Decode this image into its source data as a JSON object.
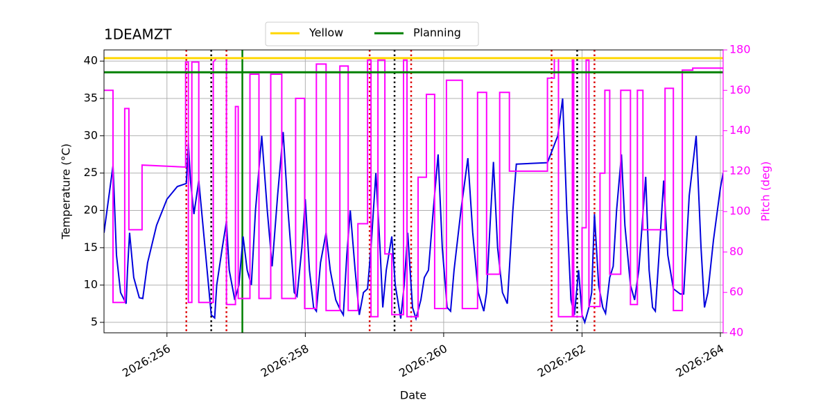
{
  "chart_data": {
    "type": "line",
    "title": "1DEAMZT",
    "xlabel": "Date",
    "ylabel": "Temperature (°C)",
    "y2label": "Pitch (deg)",
    "y2color": "#ff00ff",
    "xlim": [
      255.09,
      264.04
    ],
    "xticks": [
      {
        "value": 256,
        "label": "2026:256"
      },
      {
        "value": 258,
        "label": "2026:258"
      },
      {
        "value": 260,
        "label": "2026:260"
      },
      {
        "value": 262,
        "label": "2026:262"
      },
      {
        "value": 264,
        "label": "2026:264"
      }
    ],
    "ylim": [
      3.6,
      41.5
    ],
    "yticks": [
      5,
      10,
      15,
      20,
      25,
      30,
      35,
      40
    ],
    "y2lim": [
      40,
      180
    ],
    "y2ticks": [
      40,
      60,
      80,
      100,
      120,
      140,
      160,
      180
    ],
    "grid": true,
    "legend": "upper center",
    "hlines": [
      {
        "name": "Yellow",
        "color": "#ffd700",
        "value": 40.4
      },
      {
        "name": "Planning",
        "color": "#008000",
        "value": 38.5
      }
    ],
    "vlines": [
      {
        "color": "#dd0000",
        "style": "dotted",
        "x": [
          256.28,
          256.86,
          258.93,
          259.53,
          261.56,
          262.18
        ]
      },
      {
        "color": "#000000",
        "style": "dotted",
        "x": [
          256.64,
          259.29,
          261.93
        ]
      },
      {
        "color": "#008000",
        "style": "solid",
        "x": [
          257.09
        ]
      }
    ],
    "series": [
      {
        "color": "#0000dd",
        "x": [
          255.09,
          255.22,
          255.27,
          255.33,
          255.41,
          255.43,
          255.46,
          255.52,
          255.6,
          255.65,
          255.72,
          255.85,
          256.0,
          256.15,
          256.28,
          256.31,
          256.34,
          256.39,
          256.46,
          256.6,
          256.64,
          256.69,
          256.72,
          256.8,
          256.86,
          256.9,
          256.98,
          257.04,
          257.1,
          257.16,
          257.22,
          257.28,
          257.37,
          257.45,
          257.52,
          257.6,
          257.68,
          257.75,
          257.84,
          257.88,
          257.95,
          258.0,
          258.06,
          258.12,
          258.16,
          258.22,
          258.3,
          258.36,
          258.44,
          258.5,
          258.55,
          258.6,
          258.65,
          258.72,
          258.78,
          258.84,
          258.9,
          258.95,
          259.02,
          259.08,
          259.12,
          259.17,
          259.25,
          259.3,
          259.38,
          259.43,
          259.48,
          259.55,
          259.6,
          259.67,
          259.72,
          259.78,
          259.85,
          259.92,
          259.98,
          260.05,
          260.1,
          260.15,
          260.25,
          260.35,
          260.42,
          260.5,
          260.58,
          260.62,
          260.67,
          260.72,
          260.78,
          260.85,
          260.92,
          261.0,
          261.05,
          261.5,
          261.65,
          261.72,
          261.78,
          261.84,
          261.89,
          261.95,
          262.0,
          262.04,
          262.1,
          262.14,
          262.18,
          262.24,
          262.3,
          262.34,
          262.4,
          262.45,
          262.5,
          262.57,
          262.62,
          262.7,
          262.76,
          262.82,
          262.92,
          262.97,
          263.02,
          263.06,
          263.12,
          263.18,
          263.24,
          263.32,
          263.42,
          263.47,
          263.55,
          263.65,
          263.72,
          263.77,
          263.82,
          263.9,
          264.0,
          264.04
        ],
        "values": [
          17,
          26,
          14,
          9,
          7.5,
          12,
          17,
          11,
          8.3,
          8.2,
          13,
          18,
          21.5,
          23.2,
          23.6,
          29,
          24,
          19.5,
          24,
          10,
          6,
          5.6,
          10,
          15,
          18.5,
          12,
          8,
          10,
          16.5,
          12,
          10,
          20,
          30,
          20,
          12.5,
          22,
          30.5,
          20,
          9,
          8.5,
          15,
          21.5,
          12,
          7,
          6.5,
          13,
          17,
          12,
          8,
          6.8,
          6,
          14,
          20,
          12,
          6,
          9,
          9.5,
          15,
          25,
          15,
          7,
          12,
          16.5,
          10,
          5.5,
          10,
          17,
          7,
          5.5,
          8,
          11,
          12,
          20,
          27.5,
          15,
          7,
          6.5,
          12,
          20,
          27,
          17,
          9,
          6.5,
          9,
          18,
          26.5,
          15,
          9,
          7.5,
          20,
          26.2,
          26.4,
          30,
          35,
          20,
          8,
          6,
          12,
          6,
          5,
          7,
          9,
          19.5,
          10,
          7,
          6.2,
          11,
          12.5,
          20,
          27.5,
          18,
          10,
          8,
          12,
          24.5,
          12,
          7,
          6.5,
          15,
          24,
          14,
          9.5,
          8.8,
          8.8,
          22,
          30,
          15,
          7,
          9,
          16,
          23,
          25
        ]
      },
      {
        "color": "#ff00ff",
        "axis": "y2",
        "x": [
          255.09,
          255.22,
          255.22,
          255.39,
          255.39,
          255.45,
          255.45,
          255.64,
          255.64,
          256.27,
          256.27,
          256.31,
          256.31,
          256.36,
          256.36,
          256.46,
          256.46,
          256.67,
          256.67,
          256.72,
          256.86,
          256.86,
          256.99,
          256.99,
          257.03,
          257.03,
          257.2,
          257.2,
          257.33,
          257.33,
          257.5,
          257.5,
          257.66,
          257.66,
          257.86,
          257.86,
          257.99,
          257.99,
          258.16,
          258.16,
          258.3,
          258.3,
          258.5,
          258.5,
          258.62,
          258.62,
          258.76,
          258.76,
          258.9,
          258.9,
          258.95,
          258.95,
          259.05,
          259.05,
          259.15,
          259.15,
          259.25,
          259.25,
          259.42,
          259.42,
          259.47,
          259.47,
          259.63,
          259.63,
          259.75,
          259.75,
          259.87,
          259.87,
          260.04,
          260.04,
          260.27,
          260.27,
          260.49,
          260.49,
          260.62,
          260.62,
          260.81,
          260.81,
          260.95,
          260.95,
          261.5,
          261.5,
          261.6,
          261.6,
          261.66,
          261.66,
          261.86,
          261.86,
          261.88,
          261.88,
          262.0,
          262.0,
          262.06,
          262.06,
          262.1,
          262.1,
          262.26,
          262.26,
          262.33,
          262.33,
          262.4,
          262.4,
          262.56,
          262.56,
          262.7,
          262.7,
          262.8,
          262.8,
          262.88,
          262.88,
          263.2,
          263.2,
          263.32,
          263.32,
          263.45,
          263.45,
          263.6,
          263.6,
          264.04
        ],
        "values": [
          160,
          160,
          55,
          55,
          151,
          151,
          91,
          91,
          123,
          122,
          174,
          174,
          55,
          55,
          174,
          174,
          55,
          55,
          174,
          176,
          176,
          54,
          54,
          152,
          152,
          57,
          57,
          168,
          168,
          57,
          57,
          168,
          168,
          57,
          57,
          156,
          156,
          52,
          52,
          173,
          173,
          51,
          51,
          172,
          172,
          51,
          51,
          94,
          94,
          175,
          175,
          48,
          48,
          175,
          175,
          79,
          79,
          49,
          49,
          175,
          175,
          48,
          48,
          117,
          117,
          158,
          158,
          52,
          52,
          165,
          165,
          52,
          52,
          159,
          159,
          69,
          69,
          159,
          159,
          120,
          120,
          166,
          166,
          176,
          176,
          48,
          48,
          175,
          175,
          48,
          48,
          92,
          92,
          175,
          175,
          53,
          53,
          119,
          119,
          160,
          160,
          69,
          69,
          160,
          160,
          54,
          54,
          160,
          160,
          91,
          91,
          161,
          161,
          51,
          51,
          170,
          170,
          171,
          171
        ]
      }
    ]
  }
}
